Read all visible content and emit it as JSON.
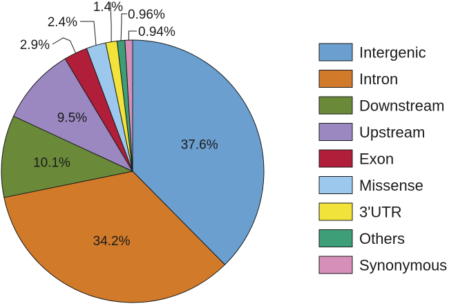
{
  "chart_data": {
    "type": "pie",
    "title": "",
    "slices": [
      {
        "label": "Intergenic",
        "value": 37.6,
        "value_label": "37.6%",
        "color": "#6a9fcf"
      },
      {
        "label": "Intron",
        "value": 34.2,
        "value_label": "34.2%",
        "color": "#d17a2a"
      },
      {
        "label": "Downstream",
        "value": 10.1,
        "value_label": "10.1%",
        "color": "#6a8a3a"
      },
      {
        "label": "Upstream",
        "value": 9.5,
        "value_label": "9.5%",
        "color": "#9b88c0"
      },
      {
        "label": "Exon",
        "value": 2.9,
        "value_label": "2.9%",
        "color": "#b01e3a"
      },
      {
        "label": "Missense",
        "value": 2.4,
        "value_label": "2.4%",
        "color": "#9dc8ee"
      },
      {
        "label": "3'UTR",
        "value": 1.4,
        "value_label": "1.4%",
        "color": "#f2e33a"
      },
      {
        "label": "Others",
        "value": 0.96,
        "value_label": "0.96%",
        "color": "#3e9e78"
      },
      {
        "label": "Synonymous",
        "value": 0.94,
        "value_label": "0.94%",
        "color": "#d68fb8"
      }
    ],
    "start_angle": "12 o'clock",
    "direction": "clockwise",
    "legend_position": "right"
  }
}
